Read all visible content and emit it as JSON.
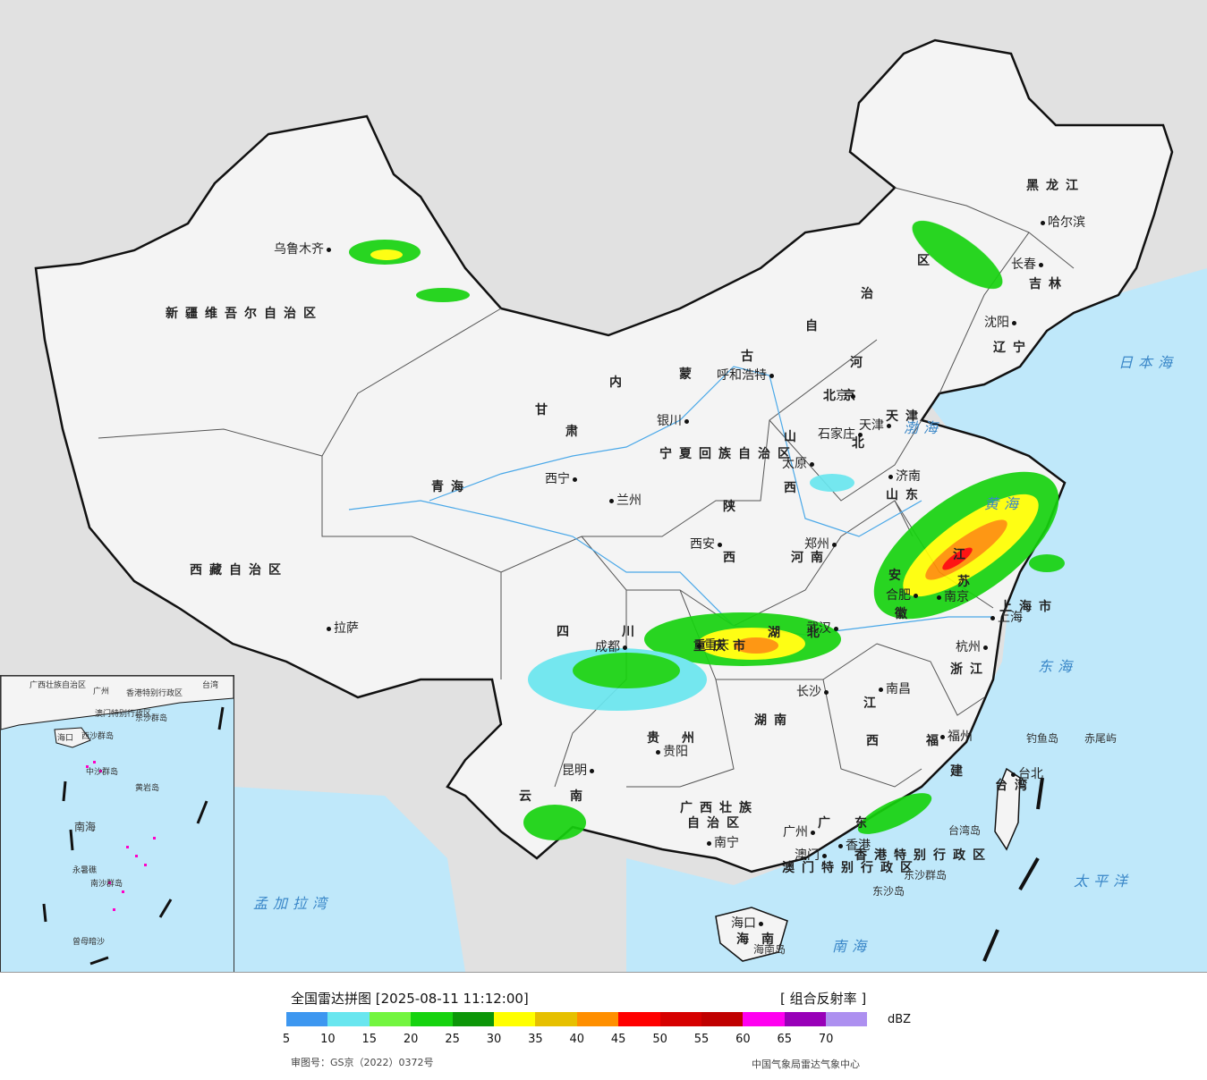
{
  "legend": {
    "title": "全国雷达拼图 [2025-08-11 11:12:00]",
    "type": "[ 组合反射率 ]",
    "unit": "dBZ",
    "ticks": [
      "5",
      "10",
      "15",
      "20",
      "25",
      "30",
      "35",
      "40",
      "45",
      "50",
      "55",
      "60",
      "65",
      "70"
    ],
    "colors": [
      "#3d97f0",
      "#69e6ef",
      "#73f53f",
      "#16d30f",
      "#0c9608",
      "#ffff00",
      "#e6c000",
      "#ff8f00",
      "#ff0000",
      "#d60000",
      "#c00000",
      "#ff00f0",
      "#9800b8",
      "#ad90f0"
    ],
    "review_no": "审图号：GS京（2022）0372号",
    "source": "中国气象局雷达气象中心"
  },
  "map": {
    "colors": {
      "land": "#f4f4f4",
      "sea": "#bfe8fa",
      "outside": "#e1e1e1",
      "border": "#111111",
      "river": "#4aa8e8"
    },
    "provinces": [
      {
        "name": "新疆维吾尔自治区"
      },
      {
        "name": "西藏自治区"
      },
      {
        "name": "青海"
      },
      {
        "name": "甘"
      },
      {
        "name": "肃"
      },
      {
        "name": "内"
      },
      {
        "name": "蒙"
      },
      {
        "name": "古"
      },
      {
        "name": "自"
      },
      {
        "name": "治"
      },
      {
        "name": "区"
      },
      {
        "name": "黑龙江"
      },
      {
        "name": "吉林"
      },
      {
        "name": "辽宁"
      },
      {
        "name": "河"
      },
      {
        "name": "北"
      },
      {
        "name": "山"
      },
      {
        "name": "西"
      },
      {
        "name": "山东"
      },
      {
        "name": "河南"
      },
      {
        "name": "陕"
      },
      {
        "name": "西"
      },
      {
        "name": "四"
      },
      {
        "name": "川"
      },
      {
        "name": "重庆市"
      },
      {
        "name": "湖"
      },
      {
        "name": "北"
      },
      {
        "name": "湖南"
      },
      {
        "name": "江"
      },
      {
        "name": "西"
      },
      {
        "name": "安"
      },
      {
        "name": "徽"
      },
      {
        "name": "江"
      },
      {
        "name": "苏"
      },
      {
        "name": "浙江"
      },
      {
        "name": "福"
      },
      {
        "name": "建"
      },
      {
        "name": "贵"
      },
      {
        "name": "州"
      },
      {
        "name": "云"
      },
      {
        "name": "南"
      },
      {
        "name": "广西壮族"
      },
      {
        "name": "自治区"
      },
      {
        "name": "广"
      },
      {
        "name": "东"
      },
      {
        "name": "海"
      },
      {
        "name": "南"
      },
      {
        "name": "上海市"
      },
      {
        "name": "台湾"
      },
      {
        "name": "宁夏回族自治区"
      },
      {
        "name": "香港特别行政区"
      },
      {
        "name": "澳门特别行政区"
      },
      {
        "name": "天津"
      },
      {
        "name": "北京"
      }
    ],
    "cities": [
      {
        "name": "乌鲁木齐"
      },
      {
        "name": "拉萨"
      },
      {
        "name": "西宁"
      },
      {
        "name": "兰州"
      },
      {
        "name": "银川"
      },
      {
        "name": "呼和浩特"
      },
      {
        "name": "北京"
      },
      {
        "name": "天津"
      },
      {
        "name": "石家庄"
      },
      {
        "name": "太原"
      },
      {
        "name": "济南"
      },
      {
        "name": "郑州"
      },
      {
        "name": "西安"
      },
      {
        "name": "成都"
      },
      {
        "name": "重庆"
      },
      {
        "name": "武汉"
      },
      {
        "name": "长沙"
      },
      {
        "name": "南昌"
      },
      {
        "name": "合肥"
      },
      {
        "name": "南京"
      },
      {
        "name": "上海"
      },
      {
        "name": "杭州"
      },
      {
        "name": "福州"
      },
      {
        "name": "台北"
      },
      {
        "name": "贵阳"
      },
      {
        "name": "昆明"
      },
      {
        "name": "南宁"
      },
      {
        "name": "广州"
      },
      {
        "name": "香港"
      },
      {
        "name": "澳门"
      },
      {
        "name": "海口"
      },
      {
        "name": "哈尔滨"
      },
      {
        "name": "长春"
      },
      {
        "name": "沈阳"
      }
    ],
    "seas": [
      {
        "name": "日本海"
      },
      {
        "name": "渤海"
      },
      {
        "name": "黄海"
      },
      {
        "name": "东海"
      },
      {
        "name": "太平洋"
      },
      {
        "name": "南海"
      },
      {
        "name": "孟加拉湾"
      }
    ],
    "islands": [
      {
        "name": "钓鱼岛"
      },
      {
        "name": "赤尾屿"
      },
      {
        "name": "台湾岛"
      },
      {
        "name": "东沙群岛"
      },
      {
        "name": "东沙岛"
      },
      {
        "name": "海南岛"
      }
    ],
    "inset": {
      "labels": [
        {
          "name": "广西壮族自治区"
        },
        {
          "name": "广州"
        },
        {
          "name": "香港特别行政区"
        },
        {
          "name": "澳门特别行政区"
        },
        {
          "name": "东沙群岛"
        },
        {
          "name": "海口"
        },
        {
          "name": "西沙群岛"
        },
        {
          "name": "中沙群岛"
        },
        {
          "name": "黄岩岛"
        },
        {
          "name": "南海"
        },
        {
          "name": "南沙群岛"
        },
        {
          "name": "永暑礁"
        },
        {
          "name": "曾母暗沙"
        },
        {
          "name": "台湾"
        }
      ]
    }
  }
}
